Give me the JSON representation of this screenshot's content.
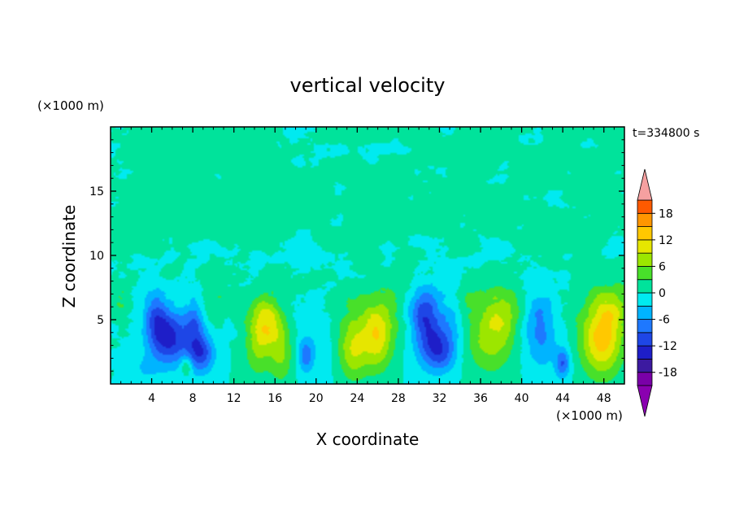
{
  "chart_data": {
    "type": "heatmap",
    "title": "vertical velocity",
    "xlabel": "X coordinate",
    "ylabel": "Z coordinate",
    "x_unit": "(×1000 m)",
    "y_unit": "(×1000 m)",
    "time_label": "t=334800 s",
    "xlim": [
      0,
      50
    ],
    "ylim": [
      0,
      20
    ],
    "x_ticks": [
      4,
      8,
      12,
      16,
      20,
      24,
      28,
      32,
      36,
      40,
      44,
      48
    ],
    "y_ticks": [
      5,
      10,
      15
    ],
    "colorbar": {
      "levels": [
        -21,
        -18,
        -15,
        -12,
        -9,
        -6,
        -3,
        0,
        3,
        6,
        9,
        12,
        15,
        18,
        21
      ],
      "tick_labels": [
        18,
        12,
        6,
        0,
        -6,
        -12,
        -18
      ],
      "colors": [
        "#7a00a8",
        "#3c1aa0",
        "#1e1ec8",
        "#1e46e6",
        "#1e78ff",
        "#00b4ff",
        "#00eaf0",
        "#00e39b",
        "#48e02a",
        "#9ce600",
        "#e6e600",
        "#ffc800",
        "#ff9600",
        "#ff5a00",
        "#ff1e1e"
      ],
      "under_color": "#8a00b0",
      "over_color": "#f5a0a0"
    },
    "features": [
      {
        "x": 5.8,
        "z": 3.6,
        "amp": -13,
        "sx": 1.3,
        "sz": 1.5
      },
      {
        "x": 4.4,
        "z": 5.2,
        "amp": -8,
        "sx": 0.8,
        "sz": 1.5
      },
      {
        "x": 8.8,
        "z": 2.4,
        "amp": -11,
        "sx": 0.9,
        "sz": 1.1
      },
      {
        "x": 8.2,
        "z": 4.8,
        "amp": -7,
        "sx": 0.6,
        "sz": 1.4
      },
      {
        "x": 7.4,
        "z": 1.4,
        "amp": 6,
        "sx": 0.4,
        "sz": 0.5
      },
      {
        "x": 3.4,
        "z": 1.2,
        "amp": -3,
        "sx": 1.0,
        "sz": 0.8
      },
      {
        "x": 15.2,
        "z": 4.8,
        "amp": 11,
        "sx": 1.1,
        "sz": 1.4
      },
      {
        "x": 14.3,
        "z": 2.6,
        "amp": 5,
        "sx": 0.9,
        "sz": 1.6
      },
      {
        "x": 16.6,
        "z": 2.2,
        "amp": 6,
        "sx": 0.8,
        "sz": 1.5
      },
      {
        "x": 19.0,
        "z": 2.2,
        "amp": -7,
        "sx": 0.5,
        "sz": 0.9
      },
      {
        "x": 20.2,
        "z": 3.4,
        "amp": -2,
        "sx": 1.5,
        "sz": 2.2
      },
      {
        "x": 23.6,
        "z": 2.4,
        "amp": 8,
        "sx": 1.0,
        "sz": 1.5
      },
      {
        "x": 26.0,
        "z": 3.4,
        "amp": 9,
        "sx": 1.0,
        "sz": 1.7
      },
      {
        "x": 24.8,
        "z": 4.8,
        "amp": 4,
        "sx": 2.2,
        "sz": 1.6
      },
      {
        "x": 31.0,
        "z": 4.0,
        "amp": -11,
        "sx": 1.1,
        "sz": 1.8
      },
      {
        "x": 30.2,
        "z": 6.0,
        "amp": -6,
        "sx": 0.9,
        "sz": 1.1
      },
      {
        "x": 32.2,
        "z": 2.4,
        "amp": -7,
        "sx": 0.9,
        "sz": 1.0
      },
      {
        "x": 33.2,
        "z": 4.6,
        "amp": -4,
        "sx": 0.8,
        "sz": 2.0
      },
      {
        "x": 37.0,
        "z": 3.8,
        "amp": 8,
        "sx": 1.6,
        "sz": 2.0
      },
      {
        "x": 38.6,
        "z": 5.6,
        "amp": 5,
        "sx": 1.2,
        "sz": 1.4
      },
      {
        "x": 42.0,
        "z": 3.8,
        "amp": -5,
        "sx": 1.0,
        "sz": 2.0
      },
      {
        "x": 41.0,
        "z": 5.0,
        "amp": -3,
        "sx": 1.5,
        "sz": 2.0
      },
      {
        "x": 44.0,
        "z": 1.6,
        "amp": -9,
        "sx": 0.5,
        "sz": 0.8
      },
      {
        "x": 47.8,
        "z": 3.6,
        "amp": 14,
        "sx": 1.4,
        "sz": 2.0
      },
      {
        "x": 49.0,
        "z": 6.0,
        "amp": 5,
        "sx": 1.0,
        "sz": 1.2
      },
      {
        "x": 0.8,
        "z": 6.5,
        "amp": 3,
        "sx": 0.6,
        "sz": 1.0
      },
      {
        "x": 10.0,
        "z": 7.0,
        "amp": 2,
        "sx": 1.2,
        "sz": 1.2
      },
      {
        "x": 27.5,
        "z": 6.5,
        "amp": 2,
        "sx": 1.2,
        "sz": 1.2
      },
      {
        "x": 35.0,
        "z": 7.0,
        "amp": 2,
        "sx": 1.0,
        "sz": 1.0
      }
    ]
  }
}
